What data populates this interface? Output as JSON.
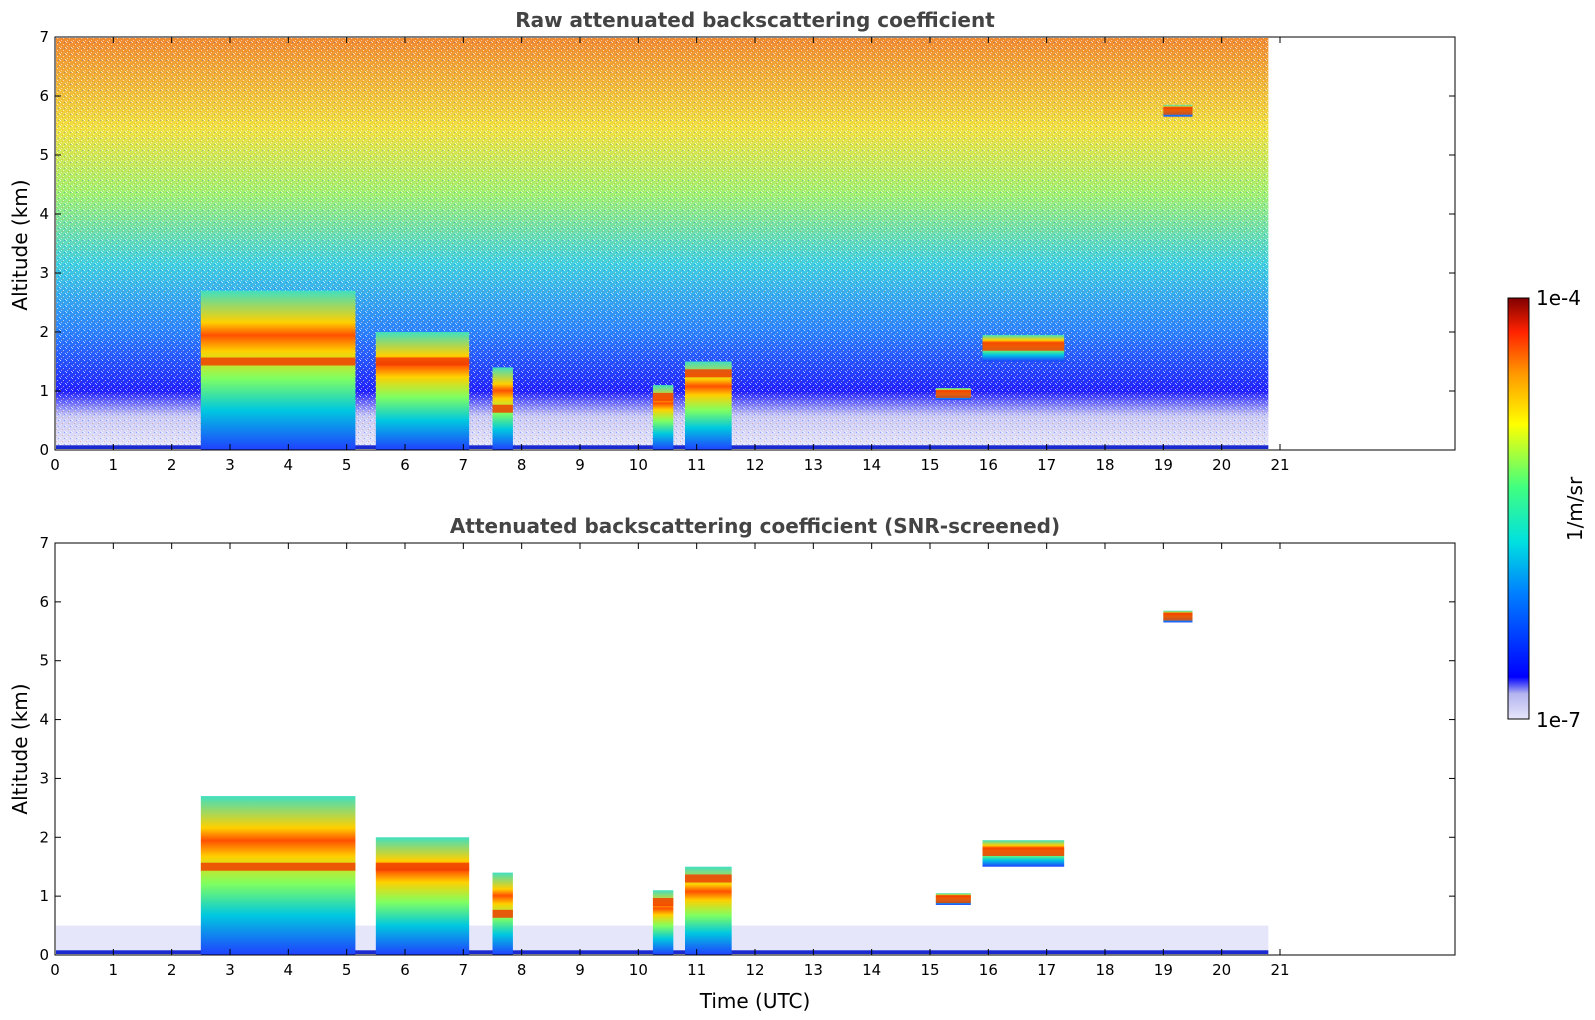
{
  "chart_data": [
    {
      "type": "heatmap",
      "title": "Raw attenuated backscattering coefficient",
      "xlabel": "",
      "ylabel": "Altitude (km)",
      "xlim": [
        0,
        24
      ],
      "ylim": [
        0,
        7
      ],
      "x_ticks": [
        "0",
        "1",
        "2",
        "3",
        "4",
        "5",
        "6",
        "7",
        "8",
        "9",
        "10",
        "11",
        "12",
        "13",
        "14",
        "15",
        "16",
        "17",
        "18",
        "19",
        "20",
        "21"
      ],
      "y_ticks": [
        "0",
        "1",
        "2",
        "3",
        "4",
        "5",
        "6",
        "7"
      ],
      "data_end_time": 20.8,
      "grid": false,
      "features": [
        {
          "t_start": 2.5,
          "t_end": 5.15,
          "base": 0.0,
          "top": 2.7,
          "peak": 1.5
        },
        {
          "t_start": 5.5,
          "t_end": 7.1,
          "base": 0.0,
          "top": 2.0,
          "peak": 1.5
        },
        {
          "t_start": 7.5,
          "t_end": 7.85,
          "base": 0.0,
          "top": 1.4,
          "peak": 0.7
        },
        {
          "t_start": 10.25,
          "t_end": 10.6,
          "base": 0.0,
          "top": 1.1,
          "peak": 0.9
        },
        {
          "t_start": 10.8,
          "t_end": 11.6,
          "base": 0.0,
          "top": 1.5,
          "peak": 1.3
        },
        {
          "t_start": 15.1,
          "t_end": 15.7,
          "base": 0.85,
          "top": 1.05,
          "peak": 0.95
        },
        {
          "t_start": 15.9,
          "t_end": 17.3,
          "base": 1.5,
          "top": 1.95,
          "peak": 1.75
        },
        {
          "t_start": 19.0,
          "t_end": 19.5,
          "base": 5.65,
          "top": 5.85,
          "peak": 5.75
        }
      ]
    },
    {
      "type": "heatmap",
      "title": "Attenuated backscattering coefficient (SNR-screened)",
      "xlabel": "Time (UTC)",
      "ylabel": "Altitude (km)",
      "xlim": [
        0,
        24
      ],
      "ylim": [
        0,
        7
      ],
      "x_ticks": [
        "0",
        "1",
        "2",
        "3",
        "4",
        "5",
        "6",
        "7",
        "8",
        "9",
        "10",
        "11",
        "12",
        "13",
        "14",
        "15",
        "16",
        "17",
        "18",
        "19",
        "20",
        "21"
      ],
      "y_ticks": [
        "0",
        "1",
        "2",
        "3",
        "4",
        "5",
        "6",
        "7"
      ],
      "data_end_time": 20.8,
      "grid": false
    }
  ],
  "colorbar": {
    "label": "1/m/sr",
    "max_label": "1e-4",
    "min_label": "1e-7",
    "scale": "log",
    "range": [
      1e-07,
      0.0001
    ],
    "colormap": [
      "#e6e6fa",
      "#c8c8f5",
      "#0000ff",
      "#0080ff",
      "#00e0e0",
      "#40ff80",
      "#ffff00",
      "#ff9900",
      "#ff2200",
      "#800000"
    ]
  }
}
